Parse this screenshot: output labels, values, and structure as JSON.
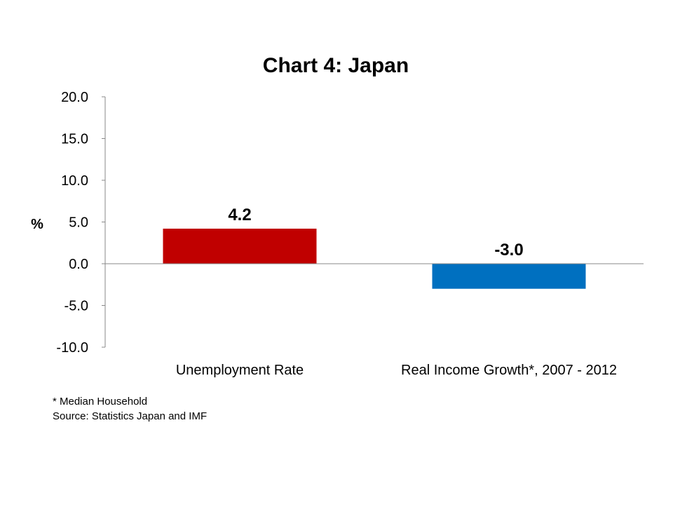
{
  "chart_data": {
    "type": "bar",
    "title": "Chart 4: Japan",
    "ylabel": "%",
    "categories": [
      "Unemployment Rate",
      "Real Income Growth*, 2007 - 2012"
    ],
    "values": [
      4.2,
      -3.0
    ],
    "value_labels": [
      "4.2",
      "-3.0"
    ],
    "colors": [
      "#C00000",
      "#0070C0"
    ],
    "ylim": [
      -10,
      20
    ],
    "yticks": [
      20,
      15,
      10,
      5,
      0,
      -5,
      -10
    ],
    "ytick_labels": [
      "20.0",
      "15.0",
      "10.0",
      "5.0",
      "0.0",
      "-5.0",
      "-10.0"
    ],
    "grid": false,
    "legend": "none"
  },
  "notes": {
    "footnote": "* Median Household",
    "source": "Source: Statistics Japan and IMF"
  }
}
